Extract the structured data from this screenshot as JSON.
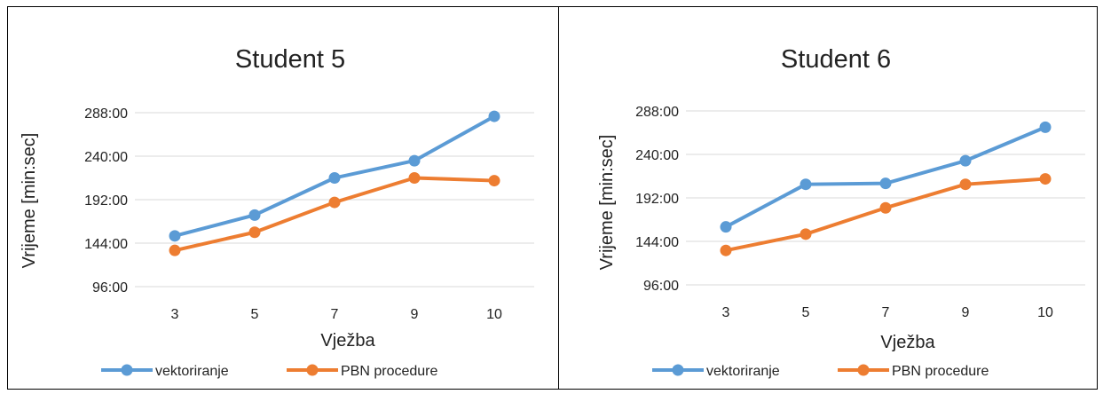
{
  "chart_data": [
    {
      "type": "line",
      "title": "Student 5",
      "xlabel": "Vježba",
      "ylabel": "Vrijeme [min:sec]",
      "categories": [
        "3",
        "5",
        "7",
        "9",
        "10"
      ],
      "ylim": [
        96,
        288
      ],
      "yticks": [
        "96:00",
        "144:00",
        "192:00",
        "240:00",
        "288:00"
      ],
      "grid": true,
      "legend": "bottom",
      "series": [
        {
          "name": "vektoriranje",
          "color": "#5b9bd5",
          "values": [
            152,
            175,
            216,
            235,
            284
          ]
        },
        {
          "name": "PBN procedure",
          "color": "#ed7d31",
          "values": [
            136,
            156,
            189,
            216,
            213
          ]
        }
      ]
    },
    {
      "type": "line",
      "title": "Student 6",
      "xlabel": "Vježba",
      "ylabel": "Vrijeme [min:sec]",
      "categories": [
        "3",
        "5",
        "7",
        "9",
        "10"
      ],
      "ylim": [
        96,
        288
      ],
      "yticks": [
        "96:00",
        "144:00",
        "192:00",
        "240:00",
        "288:00"
      ],
      "grid": true,
      "legend": "bottom",
      "series": [
        {
          "name": "vektoriranje",
          "color": "#5b9bd5",
          "values": [
            160,
            207,
            208,
            233,
            270
          ]
        },
        {
          "name": "PBN procedure",
          "color": "#ed7d31",
          "values": [
            134,
            152,
            181,
            207,
            213
          ]
        }
      ]
    }
  ]
}
